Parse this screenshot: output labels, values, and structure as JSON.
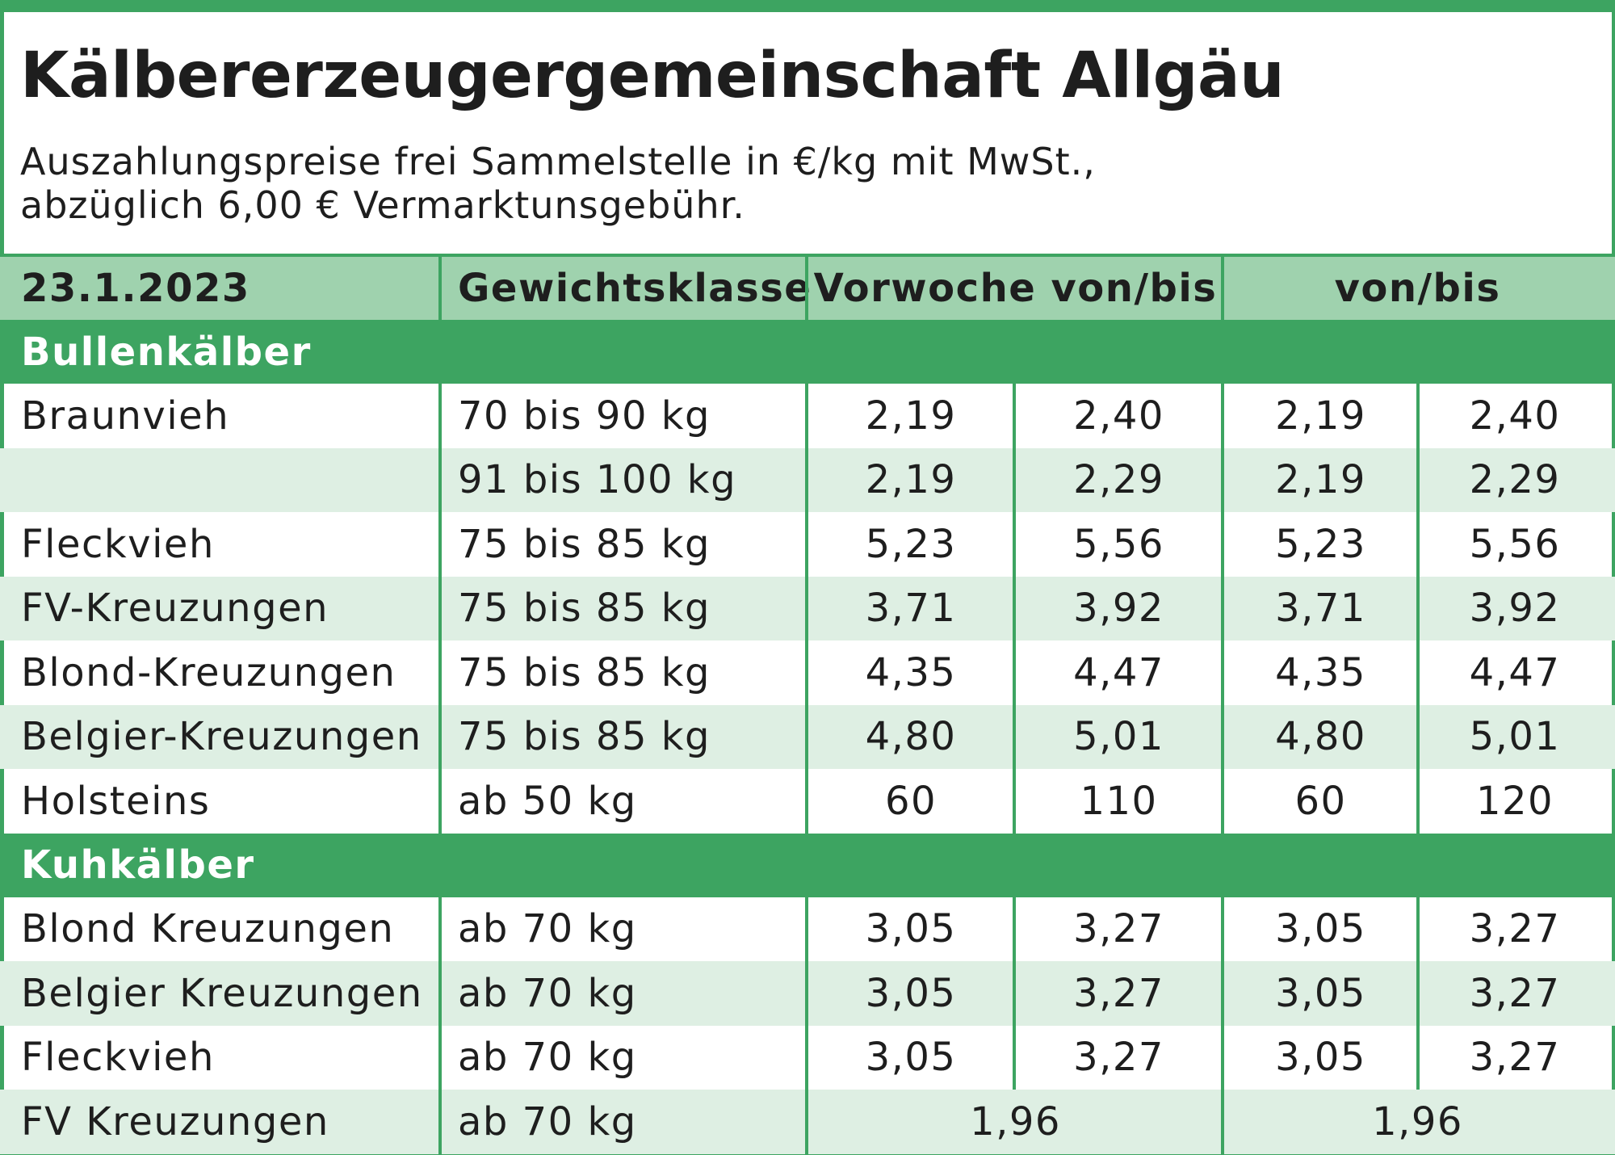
{
  "title": "Kälbererzeugergemeinschaft Allgäu",
  "subtitle_lines": [
    "Auszahlungspreise frei Sammelstelle in €/kg mit MwSt.,",
    "abzüglich 6,00 € Vermarktunsgebühr."
  ],
  "header": {
    "date": "23.1.2023",
    "weight_class": "Gewichtsklasse",
    "previous_week": "Vorwoche von/bis",
    "current": "von/bis"
  },
  "sections": [
    {
      "label": "Bullenkälber",
      "rows": [
        {
          "breed": "Braunvieh",
          "weight": "70 bis 90 kg",
          "prev_from": "2,19",
          "prev_to": "2,40",
          "from": "2,19",
          "to": "2,40"
        },
        {
          "breed": "",
          "weight": "91 bis 100 kg",
          "prev_from": "2,19",
          "prev_to": "2,29",
          "from": "2,19",
          "to": "2,29"
        },
        {
          "breed": "Fleckvieh",
          "weight": "75 bis 85 kg",
          "prev_from": "5,23",
          "prev_to": "5,56",
          "from": "5,23",
          "to": "5,56"
        },
        {
          "breed": "FV-Kreuzungen",
          "weight": "75 bis 85 kg",
          "prev_from": "3,71",
          "prev_to": "3,92",
          "from": "3,71",
          "to": "3,92"
        },
        {
          "breed": "Blond-Kreuzungen",
          "weight": "75 bis 85 kg",
          "prev_from": "4,35",
          "prev_to": "4,47",
          "from": "4,35",
          "to": "4,47"
        },
        {
          "breed": "Belgier-Kreuzungen",
          "weight": "75 bis 85 kg",
          "prev_from": "4,80",
          "prev_to": "5,01",
          "from": "4,80",
          "to": "5,01"
        },
        {
          "breed": "Holsteins",
          "weight": "ab 50 kg",
          "prev_from": "60",
          "prev_to": "110",
          "from": "60",
          "to": "120"
        }
      ]
    },
    {
      "label": "Kuhkälber",
      "rows": [
        {
          "breed": "Blond Kreuzungen",
          "weight": "ab 70 kg",
          "prev_from": "3,05",
          "prev_to": "3,27",
          "from": "3,05",
          "to": "3,27"
        },
        {
          "breed": "Belgier Kreuzungen",
          "weight": "ab 70 kg",
          "prev_from": "3,05",
          "prev_to": "3,27",
          "from": "3,05",
          "to": "3,27"
        },
        {
          "breed": "Fleckvieh",
          "weight": "ab 70 kg",
          "prev_from": "3,05",
          "prev_to": "3,27",
          "from": "3,05",
          "to": "3,27"
        },
        {
          "breed": "FV Kreuzungen",
          "weight": "ab 70 kg",
          "prev_single": "1,96",
          "single": "1,96"
        }
      ]
    }
  ],
  "colors": {
    "accent_green": "#3da461",
    "header_green": "#9fd2ae",
    "stripe_green": "#deefe3",
    "text": "#1e1e1e"
  }
}
